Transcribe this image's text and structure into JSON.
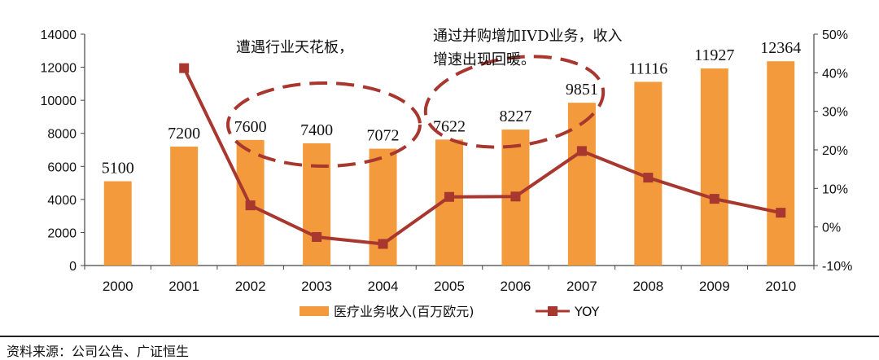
{
  "chart_data": {
    "type": "bar+line",
    "categories": [
      "2000",
      "2001",
      "2002",
      "2003",
      "2004",
      "2005",
      "2006",
      "2007",
      "2008",
      "2009",
      "2010"
    ],
    "series": [
      {
        "name": "医疗业务收入(百万欧元)",
        "type": "bar",
        "axis": "left",
        "values": [
          5100,
          7200,
          7600,
          7400,
          7072,
          7622,
          8227,
          9851,
          11116,
          11927,
          12364
        ]
      },
      {
        "name": "YOY",
        "type": "line",
        "axis": "right",
        "values": [
          null,
          41.2,
          5.6,
          -2.6,
          -4.4,
          7.8,
          7.9,
          19.7,
          12.8,
          7.3,
          3.7
        ]
      }
    ],
    "data_labels": [
      "5100",
      "7200",
      "7600",
      "7400",
      "7072",
      "7622",
      "8227",
      "9851",
      "11116",
      "11927",
      "12364"
    ],
    "y_left": {
      "lim": [
        0,
        14000
      ],
      "ticks": [
        "0",
        "2000",
        "4000",
        "6000",
        "8000",
        "10000",
        "12000",
        "14000"
      ]
    },
    "y_right": {
      "lim": [
        -10,
        50
      ],
      "ticks": [
        "-10%",
        "0%",
        "10%",
        "20%",
        "30%",
        "40%",
        "50%"
      ]
    },
    "annotations": [
      {
        "text": "遭遇行业天花板，"
      },
      {
        "line1": "通过并购增加IVD业务，收入",
        "line2": "增速出现回暖。"
      }
    ],
    "legend_position": "bottom"
  },
  "colors": {
    "bar": "#f29a3c",
    "line": "#a8372f",
    "ellipse": "#a8372f",
    "axis": "#444444"
  },
  "source": "资料来源：公司公告、广证恒生"
}
